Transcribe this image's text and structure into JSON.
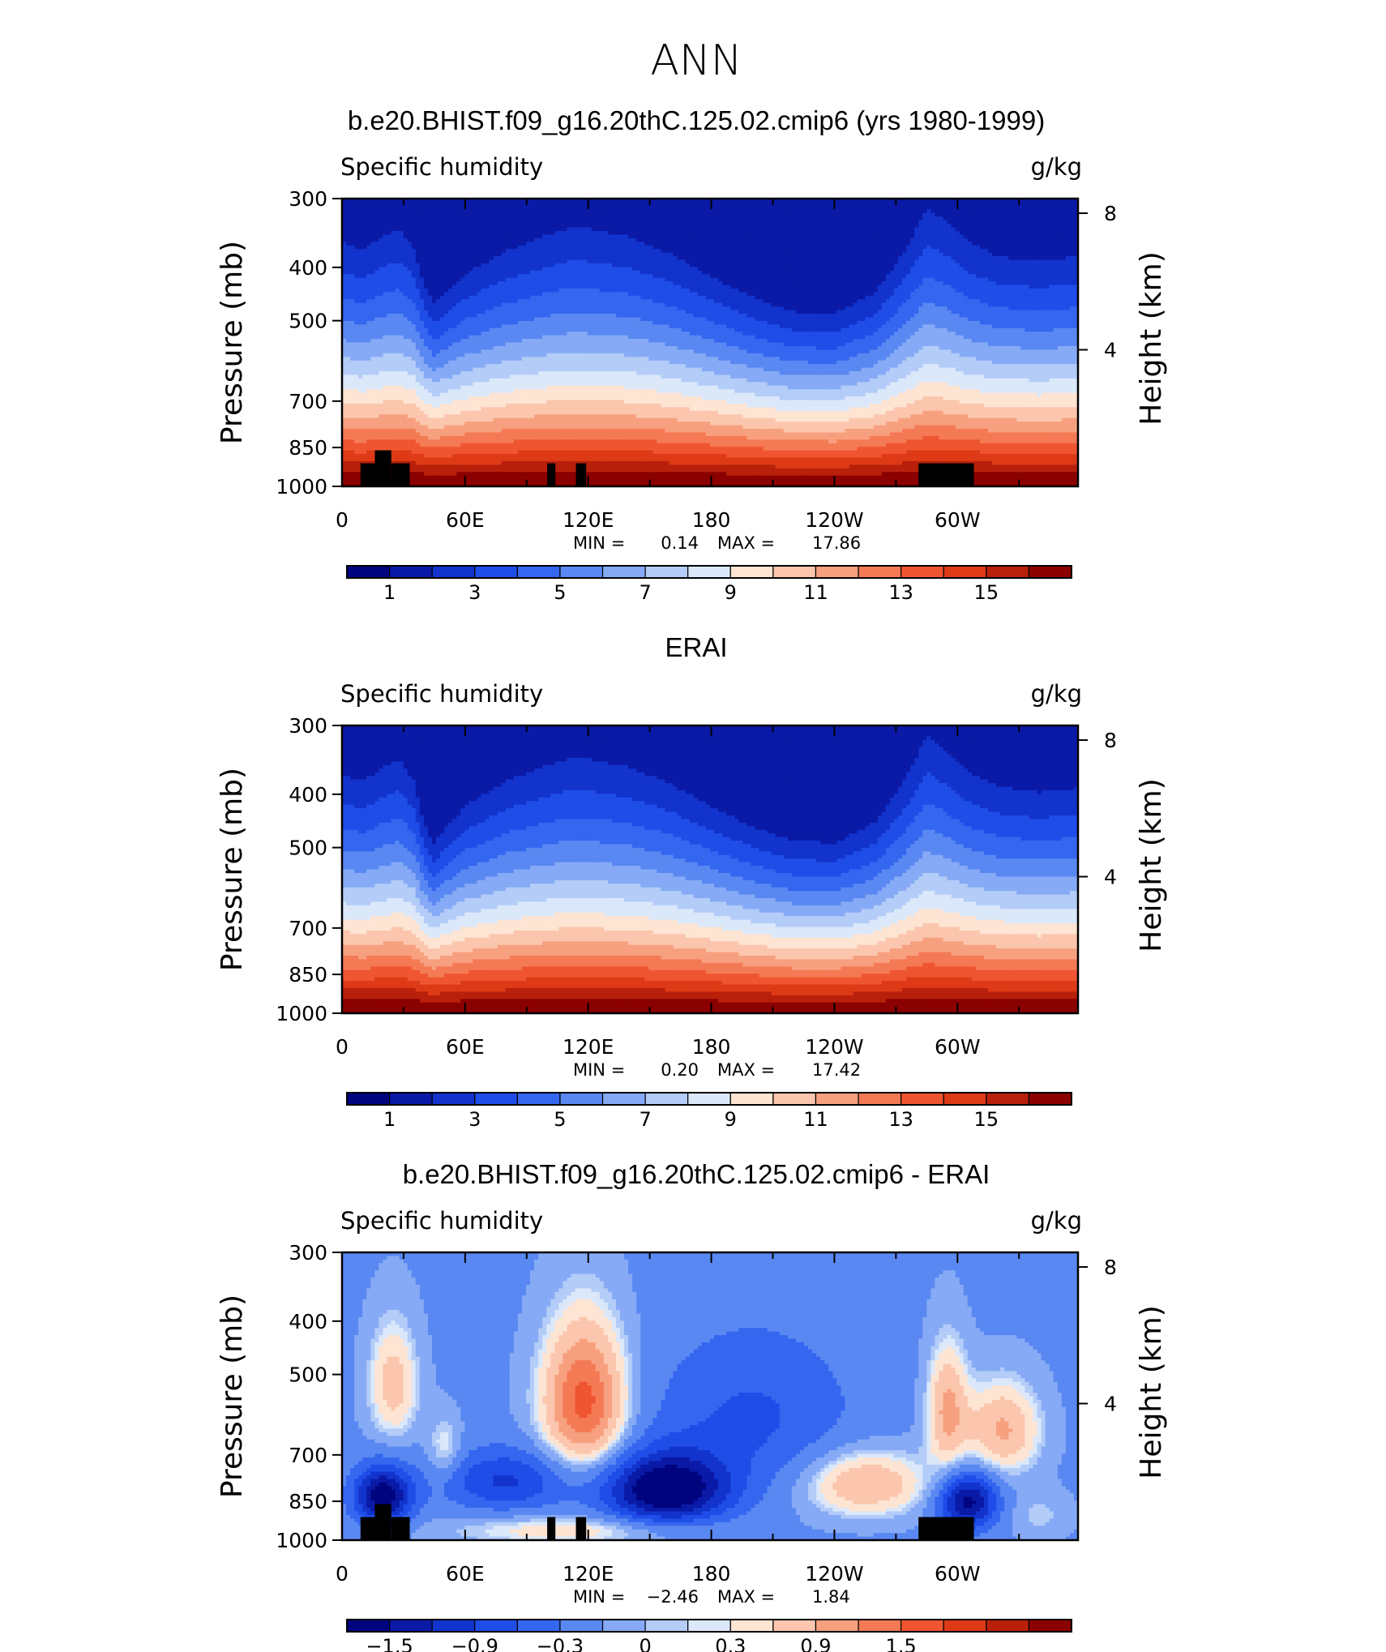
{
  "figure": {
    "title": "ANN"
  },
  "chart_data": [
    {
      "type": "heatmap",
      "title": "b.e20.BHIST.f09_g16.20thC.125.02.cmip6 (yrs 1980-1999)",
      "left_string": "Specific humidity",
      "right_string": "g/kg",
      "xlabel": "",
      "ylabel": "Pressure (mb)",
      "y2label": "Height (km)",
      "xtick_labels": [
        "0",
        "60E",
        "120E",
        "180",
        "120W",
        "60W"
      ],
      "xticks_deg": [
        0,
        60,
        120,
        180,
        240,
        300
      ],
      "xlim_deg": [
        0,
        358.75
      ],
      "ytick_labels": [
        "300",
        "400",
        "500",
        "700",
        "850",
        "1000"
      ],
      "yticks": [
        300,
        400,
        500,
        700,
        850,
        1000
      ],
      "ylim": [
        1000,
        300
      ],
      "y2tick_labels": [
        "8",
        "4"
      ],
      "y2ticks_km": [
        8,
        4
      ],
      "yscale": "log",
      "min_label": "MIN =",
      "min_value": "0.14",
      "max_label": "MAX =",
      "max_value": "17.86",
      "contour_levels": [
        0,
        1,
        2,
        3,
        4,
        5,
        6,
        7,
        8,
        9,
        10,
        11,
        12,
        13,
        14,
        15,
        16
      ],
      "colorbar_tick_labels": [
        "1",
        "3",
        "5",
        "7",
        "9",
        "11",
        "13",
        "15"
      ],
      "colorbar_colors": [
        "#00047f",
        "#0a1aa6",
        "#1233cc",
        "#1f4de8",
        "#3466f0",
        "#5a88f2",
        "#86aaf5",
        "#b3ccf8",
        "#dbe8fa",
        "#fde4d3",
        "#fbc6ad",
        "#f7a07f",
        "#f47a55",
        "#ef5530",
        "#de3a17",
        "#b8200b",
        "#8b0000"
      ],
      "surface_pressure": 1000,
      "anomaly": false,
      "masks": [
        [
          9,
          16,
          1000,
          908
        ],
        [
          16,
          24,
          1000,
          860
        ],
        [
          24,
          33,
          1000,
          908
        ],
        [
          100,
          104,
          1000,
          908
        ],
        [
          114,
          119,
          1000,
          908
        ],
        [
          281,
          308,
          1000,
          908
        ]
      ],
      "profile": [
        [
          0,
          320
        ],
        [
          10,
          335
        ],
        [
          20,
          310
        ],
        [
          28,
          300
        ],
        [
          35,
          330
        ],
        [
          40,
          395
        ],
        [
          45,
          430
        ],
        [
          50,
          410
        ],
        [
          60,
          375
        ],
        [
          80,
          335
        ],
        [
          100,
          310
        ],
        [
          110,
          300
        ],
        [
          120,
          300
        ],
        [
          140,
          312
        ],
        [
          160,
          340
        ],
        [
          180,
          380
        ],
        [
          200,
          420
        ],
        [
          220,
          450
        ],
        [
          240,
          455
        ],
        [
          260,
          410
        ],
        [
          275,
          330
        ],
        [
          285,
          270
        ],
        [
          295,
          290
        ],
        [
          305,
          320
        ],
        [
          320,
          345
        ],
        [
          340,
          352
        ],
        [
          358.75,
          345
        ]
      ]
    },
    {
      "type": "heatmap",
      "title": "ERAI",
      "left_string": "Specific humidity",
      "right_string": "g/kg",
      "xlabel": "",
      "ylabel": "Pressure (mb)",
      "y2label": "Height (km)",
      "xtick_labels": [
        "0",
        "60E",
        "120E",
        "180",
        "120W",
        "60W"
      ],
      "xticks_deg": [
        0,
        60,
        120,
        180,
        240,
        300
      ],
      "xlim_deg": [
        0,
        358.75
      ],
      "ytick_labels": [
        "300",
        "400",
        "500",
        "700",
        "850",
        "1000"
      ],
      "yticks": [
        300,
        400,
        500,
        700,
        850,
        1000
      ],
      "ylim": [
        1000,
        300
      ],
      "y2tick_labels": [
        "8",
        "4"
      ],
      "y2ticks_km": [
        8,
        4
      ],
      "yscale": "log",
      "min_label": "MIN =",
      "min_value": "0.20",
      "max_label": "MAX =",
      "max_value": "17.42",
      "contour_levels": [
        0,
        1,
        2,
        3,
        4,
        5,
        6,
        7,
        8,
        9,
        10,
        11,
        12,
        13,
        14,
        15,
        16
      ],
      "colorbar_tick_labels": [
        "1",
        "3",
        "5",
        "7",
        "9",
        "11",
        "13",
        "15"
      ],
      "colorbar_colors": [
        "#00047f",
        "#0a1aa6",
        "#1233cc",
        "#1f4de8",
        "#3466f0",
        "#5a88f2",
        "#86aaf5",
        "#b3ccf8",
        "#dbe8fa",
        "#fde4d3",
        "#fbc6ad",
        "#f7a07f",
        "#f47a55",
        "#ef5530",
        "#de3a17",
        "#b8200b",
        "#8b0000"
      ],
      "surface_pressure": 1000,
      "anomaly": false,
      "masks": [],
      "profile": [
        [
          0,
          330
        ],
        [
          10,
          340
        ],
        [
          20,
          318
        ],
        [
          28,
          305
        ],
        [
          35,
          340
        ],
        [
          40,
          420
        ],
        [
          45,
          460
        ],
        [
          50,
          430
        ],
        [
          60,
          385
        ],
        [
          80,
          340
        ],
        [
          100,
          315
        ],
        [
          110,
          305
        ],
        [
          120,
          305
        ],
        [
          140,
          318
        ],
        [
          160,
          345
        ],
        [
          180,
          385
        ],
        [
          200,
          425
        ],
        [
          220,
          455
        ],
        [
          240,
          460
        ],
        [
          260,
          415
        ],
        [
          275,
          335
        ],
        [
          285,
          270
        ],
        [
          295,
          295
        ],
        [
          305,
          325
        ],
        [
          320,
          350
        ],
        [
          340,
          360
        ],
        [
          358.75,
          352
        ]
      ]
    },
    {
      "type": "heatmap",
      "title": "b.e20.BHIST.f09_g16.20thC.125.02.cmip6 - ERAI",
      "left_string": "Specific humidity",
      "right_string": "g/kg",
      "xlabel": "",
      "ylabel": "Pressure (mb)",
      "y2label": "Height (km)",
      "xtick_labels": [
        "0",
        "60E",
        "120E",
        "180",
        "120W",
        "60W"
      ],
      "xticks_deg": [
        0,
        60,
        120,
        180,
        240,
        300
      ],
      "xlim_deg": [
        0,
        358.75
      ],
      "ytick_labels": [
        "300",
        "400",
        "500",
        "700",
        "850",
        "1000"
      ],
      "yticks": [
        300,
        400,
        500,
        700,
        850,
        1000
      ],
      "ylim": [
        1000,
        300
      ],
      "y2tick_labels": [
        "8",
        "4"
      ],
      "y2ticks_km": [
        8,
        4
      ],
      "yscale": "log",
      "min_label": "MIN =",
      "min_value": "−2.46",
      "max_label": "MAX =",
      "max_value": "1.84",
      "contour_levels": [
        -1.8,
        -1.5,
        -1.2,
        -0.9,
        -0.6,
        -0.3,
        -0.1,
        0,
        0.1,
        0.3,
        0.6,
        0.9,
        1.2,
        1.5,
        1.8
      ],
      "colorbar_tick_labels": [
        "−1.5",
        "−0.9",
        "−0.3",
        "0",
        "0.3",
        "0.9",
        "1.5"
      ],
      "colorbar_colors": [
        "#00047f",
        "#0a1aa6",
        "#1233cc",
        "#1f4de8",
        "#3466f0",
        "#5a88f2",
        "#86aaf5",
        "#b3ccf8",
        "#dbe8fa",
        "#fde4d3",
        "#fbc6ad",
        "#f7a07f",
        "#f47a55",
        "#ef5530",
        "#de3a17",
        "#b8200b",
        "#8b0000"
      ],
      "anomaly": true,
      "masks": [
        [
          9,
          16,
          1000,
          908
        ],
        [
          16,
          24,
          1000,
          860
        ],
        [
          24,
          33,
          1000,
          908
        ],
        [
          100,
          104,
          1000,
          908
        ],
        [
          114,
          119,
          1000,
          908
        ],
        [
          281,
          308,
          1000,
          908
        ]
      ],
      "blobs": [
        [
          25,
          520,
          12,
          130,
          0.8
        ],
        [
          50,
          680,
          8,
          90,
          0.5
        ],
        [
          118,
          560,
          20,
          170,
          1.7
        ],
        [
          158,
          810,
          30,
          120,
          -1.9
        ],
        [
          255,
          790,
          30,
          110,
          1.0
        ],
        [
          295,
          580,
          10,
          150,
          1.0
        ],
        [
          322,
          630,
          18,
          120,
          1.0
        ],
        [
          20,
          830,
          14,
          100,
          -1.7
        ],
        [
          305,
          850,
          14,
          100,
          -1.6
        ],
        [
          80,
          780,
          30,
          100,
          -0.9
        ],
        [
          200,
          600,
          50,
          200,
          -0.6
        ],
        [
          110,
          960,
          60,
          60,
          0.6
        ],
        [
          340,
          900,
          15,
          90,
          0.3
        ]
      ],
      "base_anomaly": -0.35
    }
  ]
}
